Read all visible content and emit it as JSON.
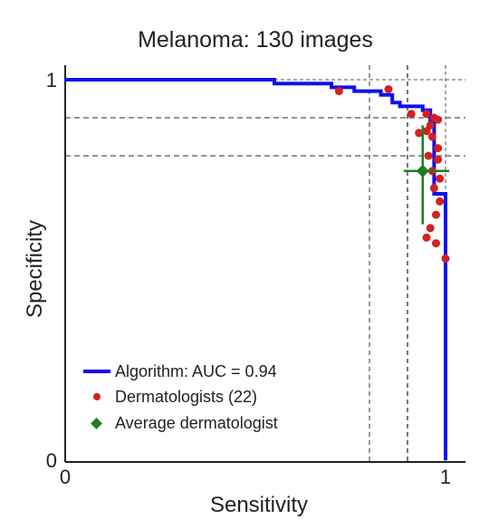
{
  "chart_data": {
    "type": "line",
    "title": "Melanoma: 130 images",
    "xlabel": "Sensitivity",
    "ylabel": "Specificity",
    "xlim": [
      0,
      1.05
    ],
    "ylim": [
      0,
      1.0
    ],
    "x_ticks": [
      {
        "value": 0,
        "label": "0"
      },
      {
        "value": 1,
        "label": "1"
      }
    ],
    "y_ticks": [
      {
        "value": 0,
        "label": "0"
      },
      {
        "value": 1,
        "label": "1"
      }
    ],
    "grid": false,
    "legend_position": "bottom-left",
    "colors": {
      "algorithm": "#1010ee",
      "dermatologists": "#d42020",
      "average": "#1e7d1e",
      "reference_lines": "#555555"
    },
    "series": [
      {
        "name": "Algorithm: AUC = 0.94",
        "kind": "step",
        "points": [
          [
            0.0,
            1.0
          ],
          [
            0.55,
            1.0
          ],
          [
            0.55,
            0.99
          ],
          [
            0.7,
            0.99
          ],
          [
            0.7,
            0.98
          ],
          [
            0.76,
            0.98
          ],
          [
            0.76,
            0.97
          ],
          [
            0.83,
            0.97
          ],
          [
            0.83,
            0.96
          ],
          [
            0.86,
            0.96
          ],
          [
            0.86,
            0.94
          ],
          [
            0.88,
            0.94
          ],
          [
            0.88,
            0.93
          ],
          [
            0.94,
            0.93
          ],
          [
            0.94,
            0.92
          ],
          [
            0.96,
            0.92
          ],
          [
            0.96,
            0.89
          ],
          [
            0.97,
            0.89
          ],
          [
            0.97,
            0.7
          ],
          [
            1.0,
            0.7
          ],
          [
            1.0,
            0.0
          ]
        ]
      },
      {
        "name": "Dermatologists (22)",
        "kind": "scatter",
        "points": [
          [
            0.72,
            0.97
          ],
          [
            0.85,
            0.975
          ],
          [
            0.91,
            0.91
          ],
          [
            0.93,
            0.86
          ],
          [
            0.95,
            0.91
          ],
          [
            0.96,
            0.88
          ],
          [
            0.97,
            0.9
          ],
          [
            0.98,
            0.895
          ],
          [
            0.95,
            0.865
          ],
          [
            0.965,
            0.85
          ],
          [
            0.98,
            0.82
          ],
          [
            0.955,
            0.8
          ],
          [
            0.965,
            0.76
          ],
          [
            0.98,
            0.79
          ],
          [
            0.985,
            0.74
          ],
          [
            0.97,
            0.715
          ],
          [
            0.985,
            0.68
          ],
          [
            0.975,
            0.645
          ],
          [
            0.96,
            0.61
          ],
          [
            0.95,
            0.585
          ],
          [
            0.975,
            0.57
          ],
          [
            1.0,
            0.53
          ]
        ]
      },
      {
        "name": "Average dermatologist",
        "kind": "point_with_error",
        "x": 0.94,
        "y": 0.76,
        "x_err": [
          0.89,
          1.01
        ],
        "y_err": [
          0.62,
          0.88
        ]
      }
    ],
    "reference_lines": {
      "horizontal": [
        0.9,
        0.8
      ],
      "vertical": [
        0.8,
        0.9
      ],
      "top": 1.0,
      "right": 1.0
    }
  }
}
